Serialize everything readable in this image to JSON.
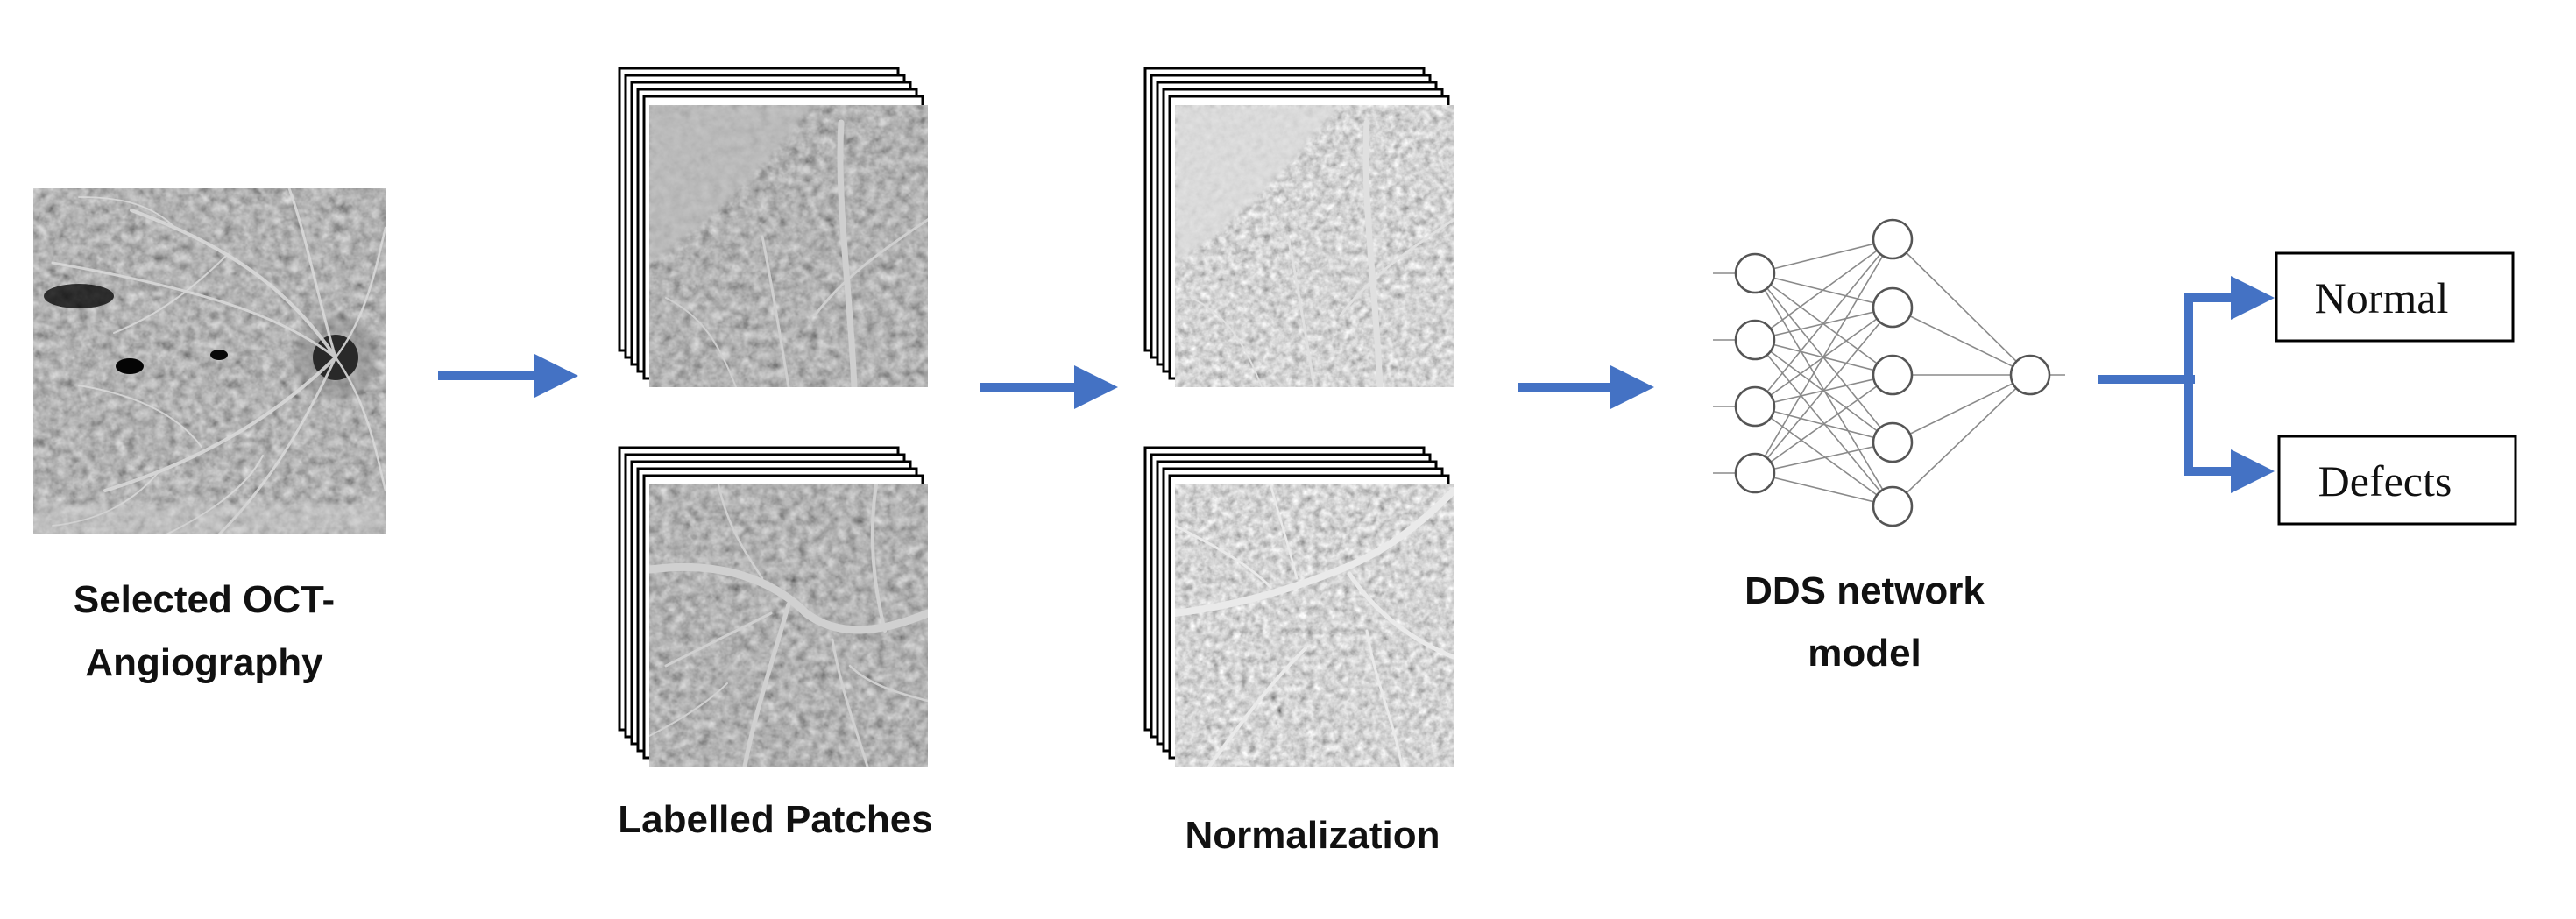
{
  "steps": {
    "input": {
      "caption_line1": "Selected OCT-",
      "caption_line2": "Angiography"
    },
    "patches": {
      "caption": "Labelled Patches"
    },
    "normalization": {
      "caption": "Normalization"
    },
    "model": {
      "caption_line1": "DDS network",
      "caption_line2": "model"
    }
  },
  "outputs": {
    "normal_label": "Normal",
    "defects_label": "Defects"
  },
  "colors": {
    "arrow": "#4472C4",
    "ink": "#111111",
    "network_line": "#8a8a8a"
  }
}
